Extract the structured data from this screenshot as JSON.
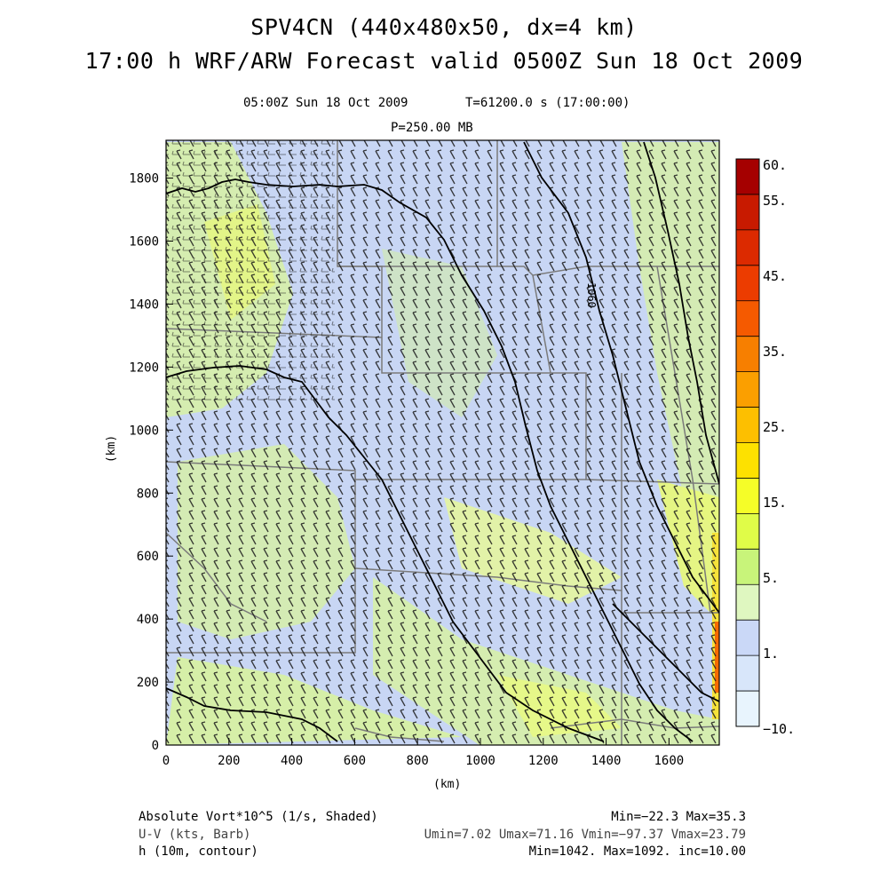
{
  "header": {
    "title1": "SPV4CN (440x480x50, dx=4 km)",
    "title2": "17:00 h WRF/ARW Forecast valid 0500Z Sun 18 Oct 2009",
    "valid_time": "05:00Z Sun 18 Oct 2009",
    "sim_time": "T=61200.0 s (17:00:00)",
    "level": "P=250.00 MB"
  },
  "axes": {
    "xlabel": "(km)",
    "ylabel": "(km)",
    "x_ticks": [
      "0",
      "200",
      "400",
      "600",
      "800",
      "1000",
      "1200",
      "1400",
      "1600"
    ],
    "y_ticks": [
      "0",
      "200",
      "400",
      "600",
      "800",
      "1000",
      "1200",
      "1400",
      "1600",
      "1800"
    ],
    "x_range": [
      0,
      1760
    ],
    "y_range": [
      0,
      1920
    ]
  },
  "colorbar": {
    "labels": [
      "60.",
      "55.",
      "45.",
      "35.",
      "25.",
      "15.",
      "5.",
      "1.",
      "−10."
    ],
    "colors": [
      "#a50000",
      "#c81a00",
      "#dc2a00",
      "#ec3c00",
      "#f55a00",
      "#f77f00",
      "#fb9f00",
      "#fdbf00",
      "#fde100",
      "#f5fd28",
      "#e0fc48",
      "#c8f47a",
      "#dff7c0",
      "#cad8f7",
      "#d8e6fa",
      "#e8f4fd"
    ]
  },
  "footer": {
    "field1": "Absolute Vort*10^5 (1/s, Shaded)",
    "field1_stats": "Min=−22.3 Max=35.3",
    "field2": "U-V (kts, Barb)",
    "field2_stats": "Umin=7.02 Umax=71.16 Vmin=−97.37 Vmax=23.79",
    "field3": "h (10m, contour)",
    "field3_stats": "Min=1042. Max=1092. inc=10.00"
  },
  "map": {
    "contour_label": "1060",
    "colors": {
      "base": "#c8d6f4",
      "green": "#d8f0a0",
      "bright": "#e8f878",
      "state_lines": "#7a7a7a",
      "contour": "#000000"
    }
  }
}
